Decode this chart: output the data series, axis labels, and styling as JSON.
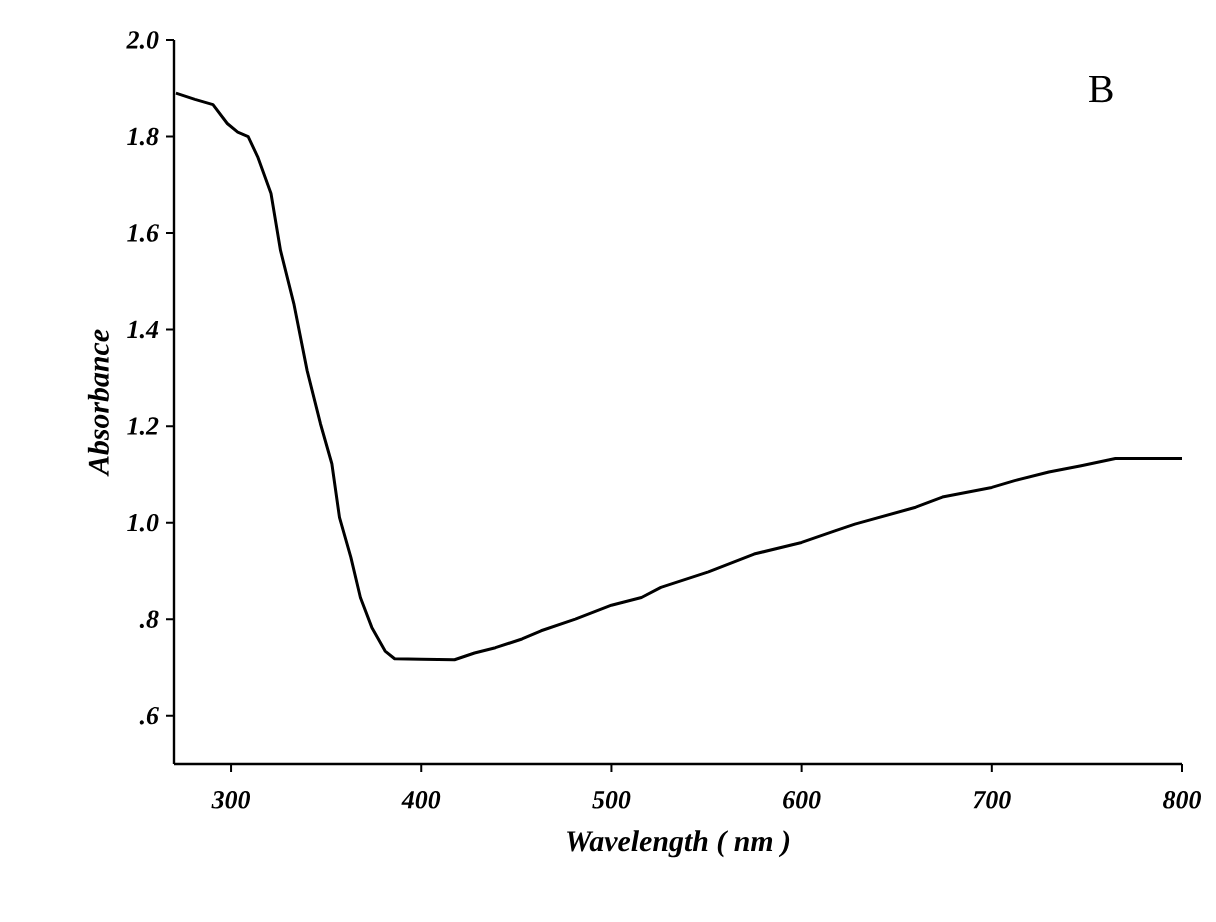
{
  "chart_data": {
    "type": "line",
    "xlabel": "Wavelength ( nm )",
    "ylabel": "Absorbance",
    "annotations": [
      "B"
    ],
    "xlim": [
      270,
      800
    ],
    "ylim": [
      0.5,
      2.0
    ],
    "xticks": [
      300,
      400,
      500,
      600,
      700,
      800
    ],
    "yticks": [
      {
        "value": 0.6,
        "label": ".6"
      },
      {
        "value": 0.8,
        "label": ".8"
      },
      {
        "value": 1.0,
        "label": "1.0"
      },
      {
        "value": 1.2,
        "label": "1.2"
      },
      {
        "value": 1.4,
        "label": "1.4"
      },
      {
        "value": 1.6,
        "label": "1.6"
      },
      {
        "value": 1.8,
        "label": "1.8"
      },
      {
        "value": 2.0,
        "label": "2.0"
      }
    ],
    "grid": false,
    "marker": "none",
    "line_style": "solid",
    "series": [
      {
        "color": "#000000",
        "x": [
          271,
          281,
          290.5,
          298,
          303.5,
          309,
          314,
          321,
          326,
          333,
          340,
          347,
          353,
          357,
          363,
          368,
          374,
          381,
          386,
          400,
          417.5,
          428,
          439,
          453,
          463,
          481,
          500,
          515.8,
          526,
          551,
          575,
          600,
          617.5,
          628,
          660,
          674,
          700,
          712,
          730,
          747,
          765,
          800
        ],
        "values": [
          1.89,
          1.877,
          1.866,
          1.827,
          1.809,
          1.8,
          1.758,
          1.682,
          1.564,
          1.454,
          1.315,
          1.205,
          1.122,
          1.011,
          0.928,
          0.845,
          0.783,
          0.734,
          0.718,
          0.717,
          0.716,
          0.73,
          0.741,
          0.759,
          0.776,
          0.8,
          0.829,
          0.845,
          0.866,
          0.898,
          0.935,
          0.959,
          0.983,
          0.997,
          1.032,
          1.053,
          1.073,
          1.087,
          1.105,
          1.118,
          1.133,
          1.133
        ]
      }
    ]
  }
}
